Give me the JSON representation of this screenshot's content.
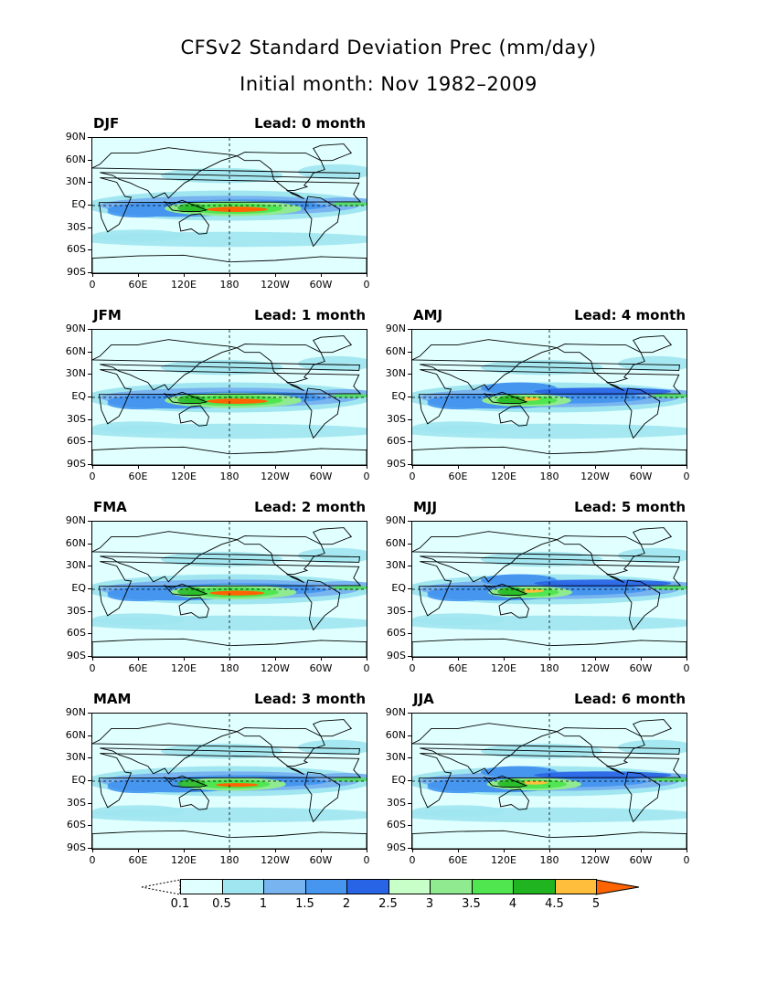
{
  "title": "CFSv2 Standard Deviation Prec (mm/day)",
  "subtitle": "Initial month: Nov 1982–2009",
  "y_ticks": [
    "90N",
    "60N",
    "30N",
    "EQ",
    "30S",
    "60S",
    "90S"
  ],
  "x_ticks": [
    "0",
    "60E",
    "120E",
    "180",
    "120W",
    "60W",
    "0"
  ],
  "panels": [
    {
      "season": "DJF",
      "lead": "Lead: 0 month",
      "strength": 1.0,
      "variant": 0
    },
    {
      "season": "JFM",
      "lead": "Lead: 1 month",
      "strength": 1.0,
      "variant": 1
    },
    {
      "season": "AMJ",
      "lead": "Lead: 4 month",
      "strength": 0.55,
      "variant": 4
    },
    {
      "season": "FMA",
      "lead": "Lead: 2 month",
      "strength": 0.9,
      "variant": 2
    },
    {
      "season": "MJJ",
      "lead": "Lead: 5 month",
      "strength": 0.5,
      "variant": 5
    },
    {
      "season": "MAM",
      "lead": "Lead: 3 month",
      "strength": 0.7,
      "variant": 3
    },
    {
      "season": "JJA",
      "lead": "Lead: 6 month",
      "strength": 0.6,
      "variant": 6
    }
  ],
  "colorbar": {
    "labels": [
      "0.1",
      "0.5",
      "1",
      "1.5",
      "2",
      "2.5",
      "3",
      "3.5",
      "4",
      "4.5",
      "5"
    ],
    "colors": [
      "#e0ffff",
      "#a0e6f0",
      "#78b4f0",
      "#4696f0",
      "#2864e6",
      "#c8ffc8",
      "#90eb90",
      "#50e650",
      "#20b420",
      "#ffbe3c",
      "#ff6400"
    ]
  }
}
